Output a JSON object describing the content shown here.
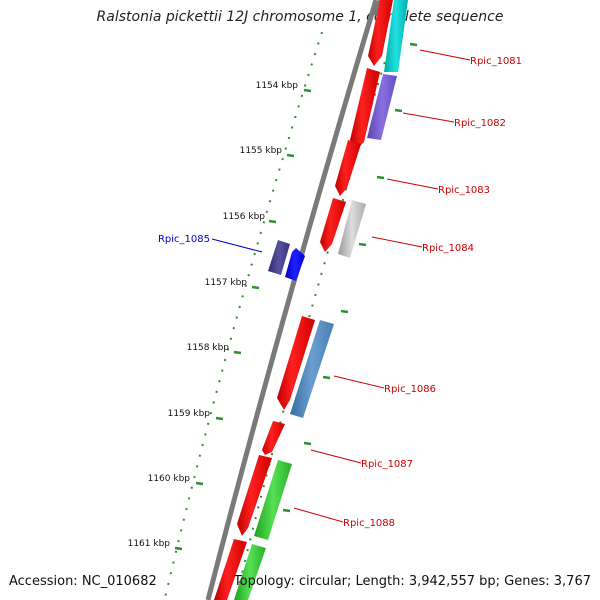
{
  "title": "Ralstonia pickettii 12J chromosome 1, complete sequence",
  "accession": "Accession: NC_010682",
  "summary": "Topology: circular; Length: 3,942,557 bp; Genes: 3,767",
  "colors": {
    "backbone": "#808080",
    "ticks": "#2f8f2f",
    "red_gene": "#ff0000",
    "forward_label": "#cc0000",
    "reverse_label": "#0000cc"
  },
  "scale_labels": [
    {
      "kbp": 1154,
      "label": "1154 kbp"
    },
    {
      "kbp": 1155,
      "label": "1155 kbp"
    },
    {
      "kbp": 1156,
      "label": "1156 kbp"
    },
    {
      "kbp": 1157,
      "label": "1157 kbp"
    },
    {
      "kbp": 1158,
      "label": "1158 kbp"
    },
    {
      "kbp": 1159,
      "label": "1159 kbp"
    },
    {
      "kbp": 1160,
      "label": "1160 kbp"
    },
    {
      "kbp": 1161,
      "label": "1161 kbp"
    }
  ],
  "gene_labels": [
    {
      "name": "Rpic_1081",
      "strand": "forward",
      "color": "#00cccc"
    },
    {
      "name": "Rpic_1082",
      "strand": "forward",
      "color": "#7b5fd6"
    },
    {
      "name": "Rpic_1083",
      "strand": "forward",
      "color": "#ff0000"
    },
    {
      "name": "Rpic_1084",
      "strand": "forward",
      "color": "#bbbbbb"
    },
    {
      "name": "Rpic_1085",
      "strand": "reverse",
      "color": "#0000ff"
    },
    {
      "name": "Rpic_1086",
      "strand": "forward",
      "color": "#4f86c0"
    },
    {
      "name": "Rpic_1087",
      "strand": "forward",
      "color": "#ff0000"
    },
    {
      "name": "Rpic_1088",
      "strand": "forward",
      "color": "#33cc33"
    }
  ]
}
